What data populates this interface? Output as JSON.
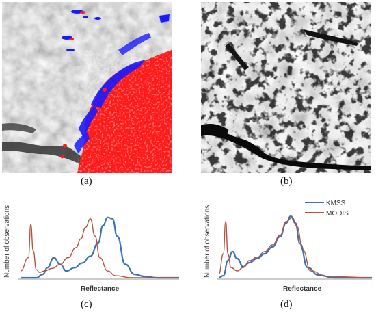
{
  "panels": {
    "a": {
      "label": "(a)"
    },
    "b": {
      "label": "(b)"
    },
    "c": {
      "label": "(c)"
    },
    "d": {
      "label": "(d)"
    }
  },
  "colors": {
    "kmss": "#3a73b8",
    "modis": "#b5533b",
    "mask_red": "#ff1a1a",
    "mask_blue": "#1a1aff"
  },
  "chart_data": [
    {
      "type": "line",
      "panel": "c",
      "xlabel": "Reflectance",
      "ylabel": "Number of observations",
      "grid": false,
      "legend": "none",
      "series": [
        {
          "name": "KMSS",
          "color": "#3a73b8",
          "x": [
            0,
            10,
            14,
            17,
            21,
            25,
            29,
            34,
            39,
            44,
            49,
            52,
            55,
            58,
            61,
            66,
            72,
            78,
            86,
            100
          ],
          "y": [
            0,
            0,
            5,
            15,
            30,
            20,
            10,
            15,
            22,
            32,
            52,
            78,
            90,
            88,
            62,
            20,
            5,
            2,
            0,
            0
          ]
        },
        {
          "name": "MODIS",
          "color": "#b5533b",
          "x": [
            0,
            5,
            6.5,
            8,
            10,
            12,
            15,
            20,
            25,
            30,
            35,
            38,
            41,
            44,
            47,
            50,
            55,
            60,
            70,
            100
          ],
          "y": [
            10,
            30,
            80,
            40,
            12,
            8,
            10,
            14,
            20,
            30,
            45,
            58,
            75,
            88,
            62,
            30,
            10,
            3,
            0,
            0
          ]
        }
      ]
    },
    {
      "type": "line",
      "panel": "d",
      "xlabel": "Reflectance",
      "ylabel": "Number of observations",
      "grid": false,
      "legend": "top-right",
      "series": [
        {
          "name": "KMSS",
          "color": "#3a73b8",
          "x": [
            0,
            3,
            6,
            9,
            12,
            16,
            20,
            25,
            30,
            35,
            40,
            44,
            47,
            50,
            53,
            58,
            65,
            75,
            100
          ],
          "y": [
            0,
            3,
            25,
            38,
            28,
            16,
            22,
            28,
            35,
            45,
            60,
            80,
            90,
            80,
            50,
            15,
            4,
            0,
            0
          ]
        },
        {
          "name": "MODIS",
          "color": "#b5533b",
          "x": [
            0,
            3,
            4.5,
            6,
            8,
            12,
            16,
            20,
            25,
            30,
            35,
            40,
            44,
            48,
            51,
            55,
            60,
            70,
            100
          ],
          "y": [
            5,
            35,
            82,
            35,
            15,
            10,
            15,
            25,
            30,
            38,
            48,
            62,
            82,
            88,
            75,
            40,
            10,
            2,
            0
          ]
        }
      ]
    }
  ]
}
